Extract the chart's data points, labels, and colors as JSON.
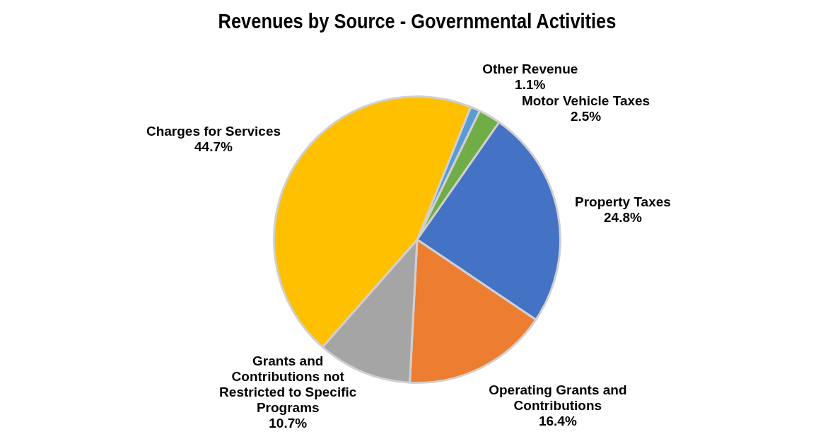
{
  "chart_data": {
    "type": "pie",
    "title": "Revenues by Source - Governmental Activities",
    "categories": [
      "Other Revenue",
      "Motor Vehicle Taxes",
      "Property Taxes",
      "Operating Grants and Contributions",
      "Grants and Contributions not Restricted to Specific Programs",
      "Charges for Services"
    ],
    "values": [
      1.1,
      2.5,
      24.8,
      16.4,
      10.7,
      44.7
    ],
    "value_labels": [
      "1.1%",
      "2.5%",
      "24.8%",
      "16.4%",
      "10.7%",
      "44.7%"
    ],
    "colors": [
      "#5b9bd5",
      "#70ad47",
      "#4472c4",
      "#ed7d31",
      "#a5a5a5",
      "#ffc000"
    ],
    "legend": false
  }
}
